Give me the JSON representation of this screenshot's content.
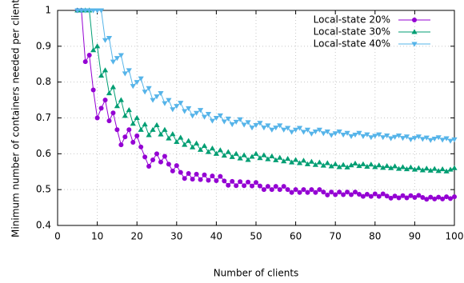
{
  "chart_data": {
    "type": "line",
    "xlabel": "Number of clients",
    "ylabel": "Minimum number of containers needed per client",
    "x": [
      5,
      6,
      7,
      8,
      9,
      10,
      11,
      12,
      13,
      14,
      15,
      16,
      17,
      18,
      19,
      20,
      21,
      22,
      23,
      24,
      25,
      26,
      27,
      28,
      29,
      30,
      31,
      32,
      33,
      34,
      35,
      36,
      37,
      38,
      39,
      40,
      41,
      42,
      43,
      44,
      45,
      46,
      47,
      48,
      49,
      50,
      51,
      52,
      53,
      54,
      55,
      56,
      57,
      58,
      59,
      60,
      61,
      62,
      63,
      64,
      65,
      66,
      67,
      68,
      69,
      70,
      71,
      72,
      73,
      74,
      75,
      76,
      77,
      78,
      79,
      80,
      81,
      82,
      83,
      84,
      85,
      86,
      87,
      88,
      89,
      90,
      91,
      92,
      93,
      94,
      95,
      96,
      97,
      98,
      99,
      100
    ],
    "series": [
      {
        "name": "Local-state 20%",
        "color": "#9400d3",
        "marker": "circle",
        "values": [
          1,
          1,
          0.857,
          0.875,
          0.778,
          0.7,
          0.727,
          0.75,
          0.692,
          0.714,
          0.667,
          0.625,
          0.647,
          0.667,
          0.632,
          0.65,
          0.619,
          0.591,
          0.565,
          0.583,
          0.6,
          0.577,
          0.593,
          0.571,
          0.552,
          0.567,
          0.548,
          0.531,
          0.545,
          0.529,
          0.543,
          0.528,
          0.541,
          0.526,
          0.538,
          0.525,
          0.537,
          0.524,
          0.512,
          0.523,
          0.511,
          0.522,
          0.511,
          0.521,
          0.51,
          0.52,
          0.51,
          0.5,
          0.509,
          0.5,
          0.509,
          0.5,
          0.509,
          0.5,
          0.492,
          0.5,
          0.492,
          0.5,
          0.492,
          0.5,
          0.492,
          0.5,
          0.493,
          0.485,
          0.493,
          0.486,
          0.493,
          0.486,
          0.493,
          0.486,
          0.493,
          0.487,
          0.481,
          0.487,
          0.481,
          0.488,
          0.481,
          0.488,
          0.482,
          0.476,
          0.482,
          0.477,
          0.483,
          0.477,
          0.483,
          0.478,
          0.484,
          0.478,
          0.473,
          0.479,
          0.474,
          0.479,
          0.474,
          0.48,
          0.475,
          0.48
        ]
      },
      {
        "name": "Local-state 30%",
        "color": "#009e73",
        "marker": "triangle-up",
        "values": [
          1,
          1,
          1,
          1,
          0.889,
          0.9,
          0.818,
          0.833,
          0.769,
          0.786,
          0.733,
          0.75,
          0.706,
          0.722,
          0.684,
          0.7,
          0.667,
          0.682,
          0.652,
          0.667,
          0.68,
          0.654,
          0.667,
          0.643,
          0.655,
          0.633,
          0.645,
          0.625,
          0.636,
          0.618,
          0.629,
          0.611,
          0.622,
          0.605,
          0.615,
          0.6,
          0.61,
          0.595,
          0.605,
          0.591,
          0.6,
          0.587,
          0.596,
          0.583,
          0.592,
          0.6,
          0.588,
          0.596,
          0.585,
          0.593,
          0.582,
          0.589,
          0.579,
          0.586,
          0.576,
          0.583,
          0.574,
          0.581,
          0.571,
          0.578,
          0.569,
          0.576,
          0.567,
          0.574,
          0.565,
          0.571,
          0.563,
          0.569,
          0.562,
          0.568,
          0.573,
          0.566,
          0.571,
          0.564,
          0.57,
          0.563,
          0.568,
          0.561,
          0.566,
          0.56,
          0.565,
          0.558,
          0.563,
          0.557,
          0.562,
          0.556,
          0.56,
          0.554,
          0.559,
          0.553,
          0.558,
          0.552,
          0.557,
          0.551,
          0.556,
          0.56
        ]
      },
      {
        "name": "Local-state 40%",
        "color": "#56b4e9",
        "marker": "triangle-down",
        "values": [
          1,
          1,
          1,
          1,
          1,
          1,
          1,
          0.917,
          0.923,
          0.857,
          0.867,
          0.875,
          0.824,
          0.833,
          0.789,
          0.8,
          0.81,
          0.773,
          0.783,
          0.75,
          0.76,
          0.769,
          0.741,
          0.75,
          0.724,
          0.733,
          0.742,
          0.719,
          0.727,
          0.706,
          0.714,
          0.722,
          0.703,
          0.711,
          0.692,
          0.7,
          0.707,
          0.69,
          0.698,
          0.682,
          0.689,
          0.696,
          0.681,
          0.688,
          0.673,
          0.68,
          0.686,
          0.673,
          0.679,
          0.667,
          0.673,
          0.679,
          0.667,
          0.672,
          0.661,
          0.667,
          0.672,
          0.661,
          0.667,
          0.656,
          0.662,
          0.667,
          0.657,
          0.662,
          0.652,
          0.657,
          0.662,
          0.653,
          0.658,
          0.649,
          0.653,
          0.658,
          0.649,
          0.654,
          0.646,
          0.65,
          0.654,
          0.646,
          0.651,
          0.643,
          0.647,
          0.651,
          0.644,
          0.648,
          0.64,
          0.644,
          0.648,
          0.641,
          0.645,
          0.638,
          0.642,
          0.646,
          0.639,
          0.643,
          0.636,
          0.64
        ]
      }
    ],
    "xlim": [
      0,
      100
    ],
    "xticks": [
      0,
      10,
      20,
      30,
      40,
      50,
      60,
      70,
      80,
      90,
      100
    ],
    "ylim": [
      0.4,
      1
    ],
    "yticks": [
      0.4,
      0.5,
      0.6,
      0.7,
      0.8,
      0.9,
      1
    ],
    "grid": true,
    "legend": "top-right"
  }
}
